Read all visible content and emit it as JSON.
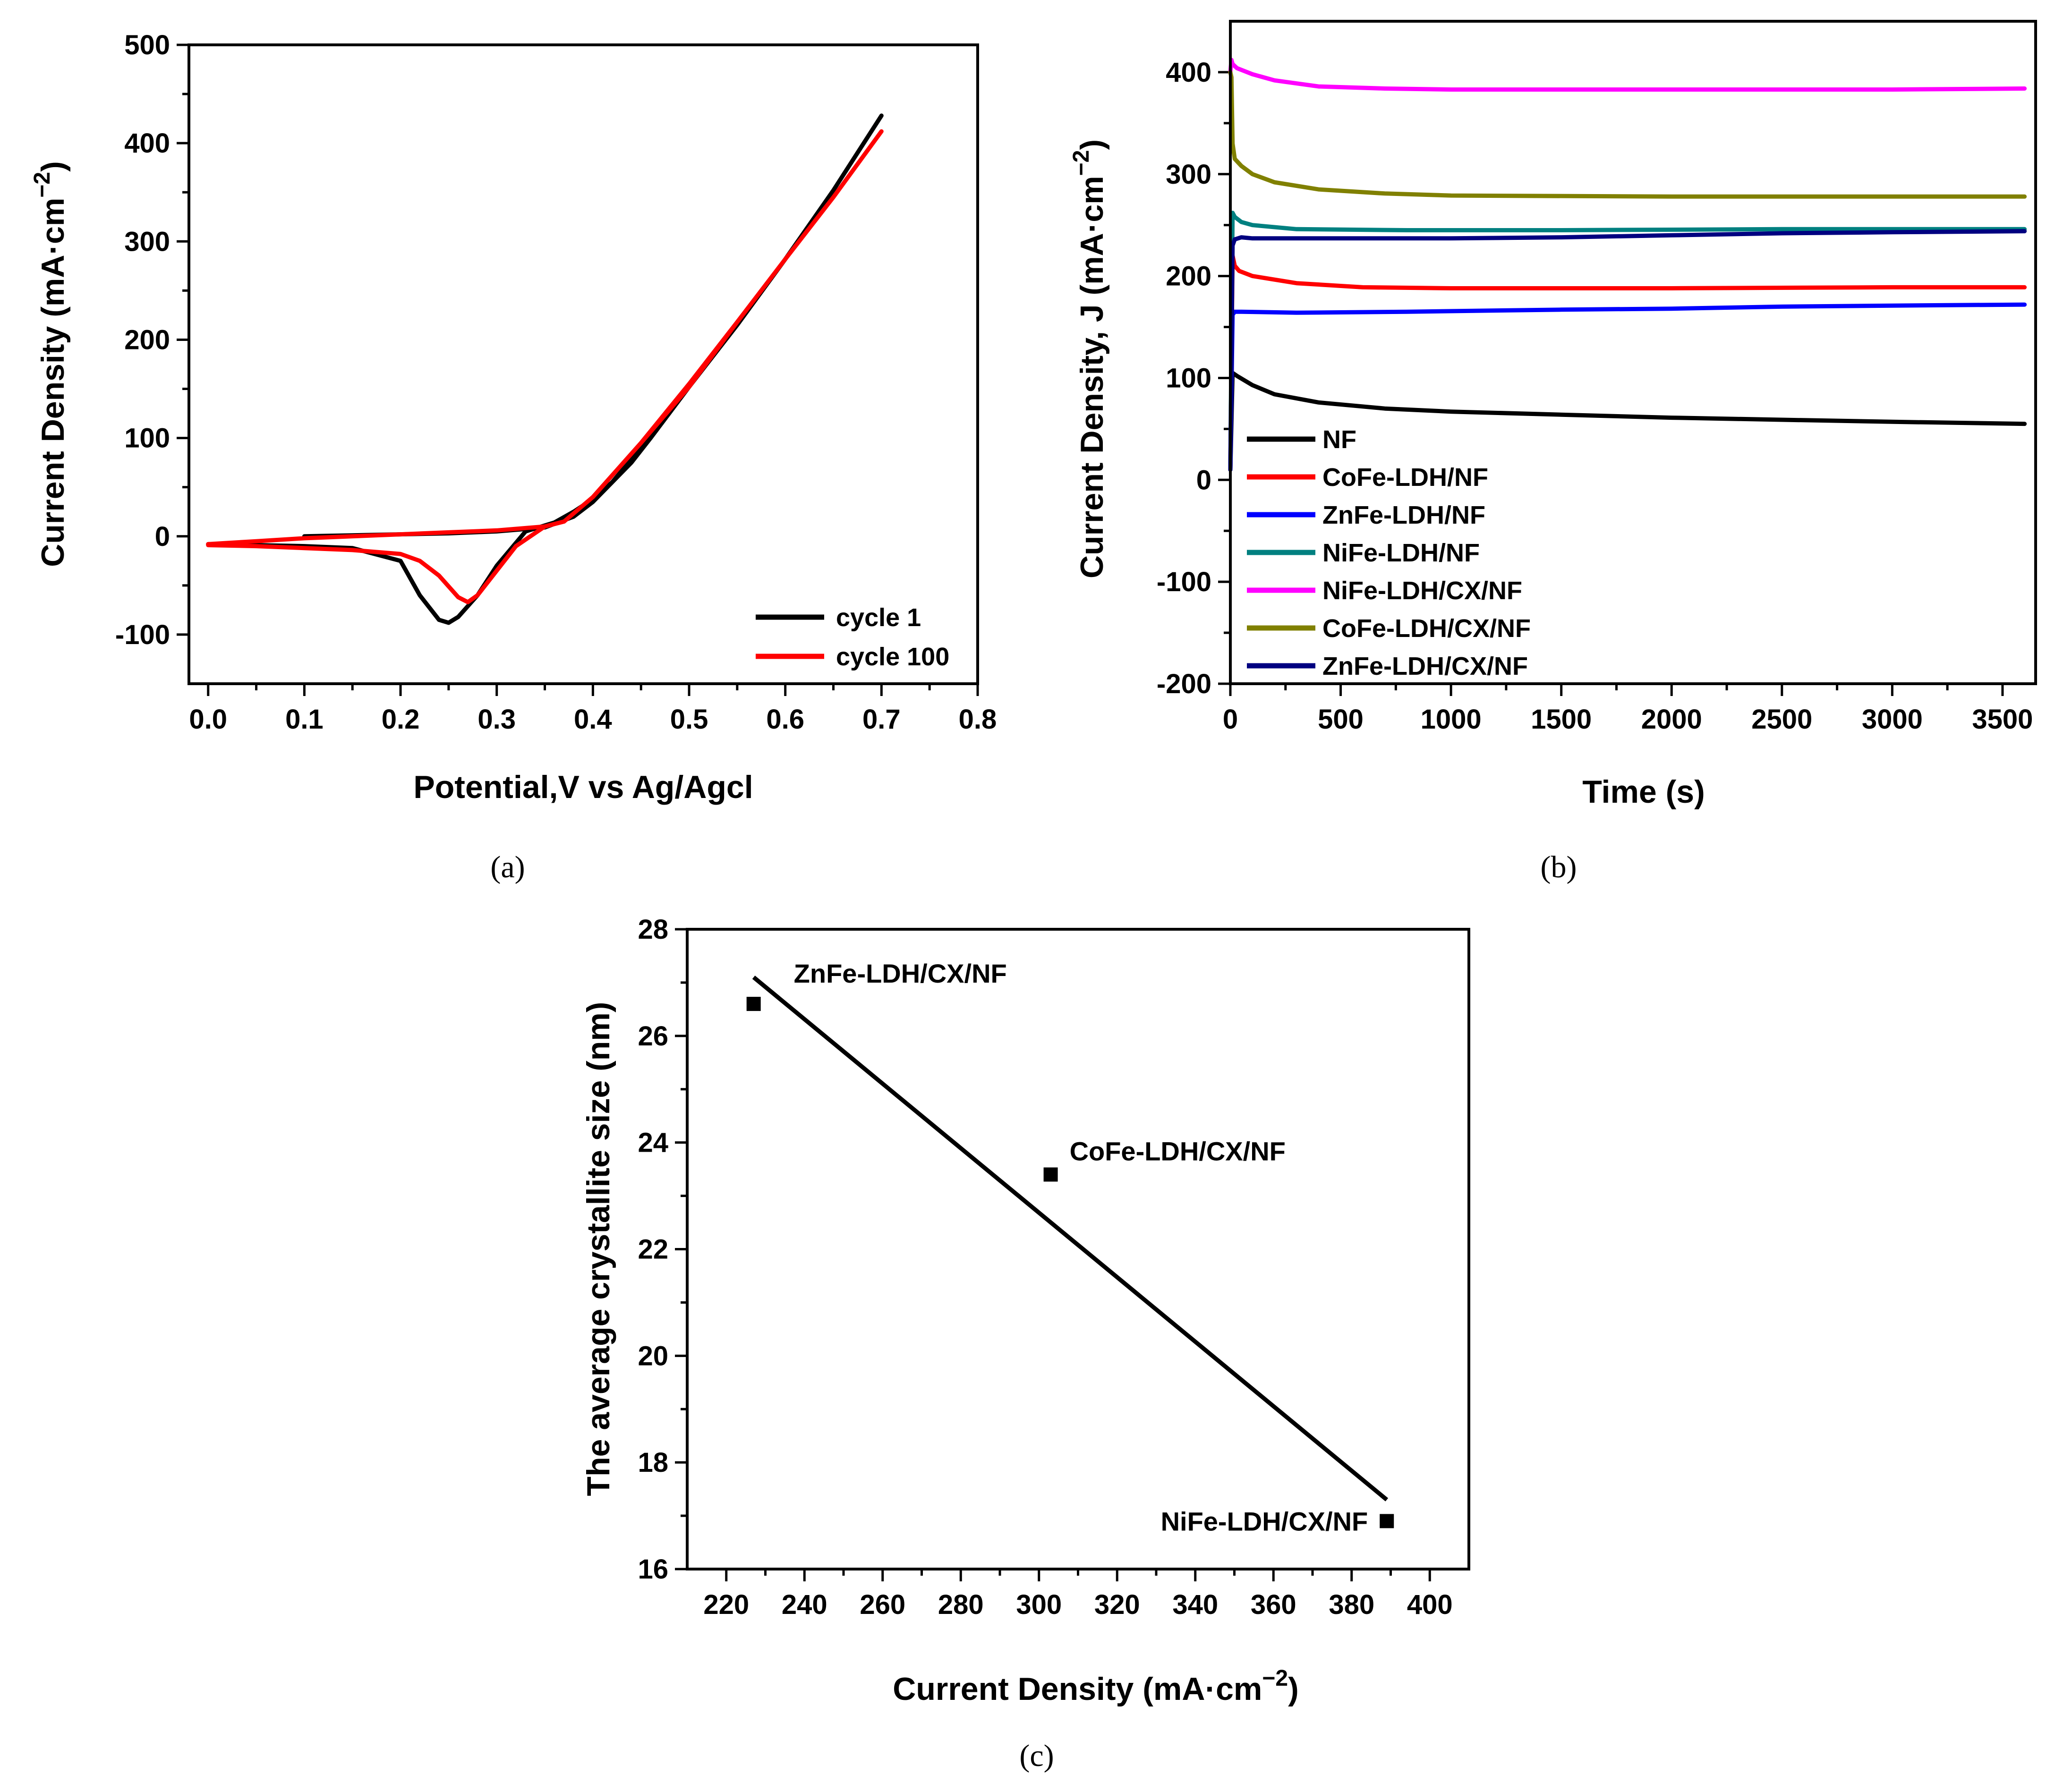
{
  "chart_data": [
    {
      "id": "a",
      "type": "line",
      "panel_label": "(a)",
      "xlabel": "Potential,V vs Ag/Agcl",
      "ylabel": "Current Density (mA·cm",
      "ylabel_sup": "−2",
      "ylabel_tail": ")",
      "xlim": [
        -0.02,
        0.8
      ],
      "ylim": [
        -150,
        500
      ],
      "xticks": [
        "0.0",
        "0.1",
        "0.2",
        "0.3",
        "0.4",
        "0.5",
        "0.6",
        "0.7",
        "0.8"
      ],
      "yticks": [
        "-100",
        "0",
        "100",
        "200",
        "300",
        "400",
        "500"
      ],
      "legend_position": "bottom-right",
      "series": [
        {
          "name": "cycle 1",
          "color": "#000000",
          "x": [
            0.1,
            0.15,
            0.2,
            0.25,
            0.3,
            0.35,
            0.38,
            0.4,
            0.42,
            0.44,
            0.46,
            0.5,
            0.55,
            0.6,
            0.65,
            0.7,
            0.65,
            0.6,
            0.55,
            0.5,
            0.45,
            0.42,
            0.4,
            0.38,
            0.36,
            0.33,
            0.3,
            0.28,
            0.26,
            0.25,
            0.24,
            0.22,
            0.2,
            0.15,
            0.1,
            0.05,
            0.0
          ],
          "y": [
            0,
            1,
            2,
            3,
            5,
            9,
            20,
            35,
            55,
            75,
            100,
            152,
            215,
            282,
            352,
            428,
            352,
            282,
            215,
            152,
            90,
            55,
            38,
            25,
            14,
            5,
            -30,
            -60,
            -82,
            -88,
            -85,
            -60,
            -25,
            -12,
            -10,
            -9,
            -8
          ]
        },
        {
          "name": "cycle 100",
          "color": "#ff0000",
          "x": [
            0.0,
            0.05,
            0.1,
            0.15,
            0.2,
            0.25,
            0.3,
            0.35,
            0.37,
            0.4,
            0.45,
            0.5,
            0.55,
            0.6,
            0.65,
            0.7,
            0.65,
            0.6,
            0.55,
            0.5,
            0.45,
            0.4,
            0.37,
            0.35,
            0.32,
            0.3,
            0.28,
            0.27,
            0.26,
            0.24,
            0.22,
            0.2,
            0.15,
            0.1,
            0.05,
            0.0
          ],
          "y": [
            -8,
            -5,
            -2,
            0,
            2,
            4,
            6,
            10,
            15,
            40,
            95,
            155,
            218,
            282,
            345,
            412,
            345,
            282,
            218,
            152,
            95,
            40,
            15,
            10,
            -10,
            -35,
            -60,
            -67,
            -62,
            -40,
            -25,
            -18,
            -14,
            -12,
            -10,
            -9
          ]
        }
      ]
    },
    {
      "id": "b",
      "type": "line",
      "panel_label": "(b)",
      "xlabel": "Time (s)",
      "ylabel": "Current Density, J (mA·cm",
      "ylabel_sup": "−2",
      "ylabel_tail": ")",
      "xlim": [
        0,
        3650
      ],
      "ylim": [
        -200,
        450
      ],
      "xticks": [
        "0",
        "500",
        "1000",
        "1500",
        "2000",
        "2500",
        "3000",
        "3500"
      ],
      "yticks": [
        "-200",
        "-100",
        "0",
        "100",
        "200",
        "300",
        "400"
      ],
      "legend_position": "bottom-left",
      "series": [
        {
          "name": "NF",
          "color": "#000000",
          "x": [
            0,
            10,
            30,
            100,
            200,
            400,
            700,
            1000,
            1500,
            2000,
            2500,
            3000,
            3600
          ],
          "y": [
            10,
            105,
            102,
            93,
            84,
            76,
            70,
            67,
            64,
            61,
            59,
            57,
            55
          ]
        },
        {
          "name": "CoFe-LDH/NF",
          "color": "#ff0000",
          "x": [
            0,
            10,
            20,
            40,
            100,
            300,
            600,
            1000,
            2000,
            3000,
            3600
          ],
          "y": [
            10,
            220,
            210,
            205,
            200,
            193,
            189,
            188,
            188,
            189,
            189
          ]
        },
        {
          "name": "ZnFe-LDH/NF",
          "color": "#0000ff",
          "x": [
            0,
            10,
            20,
            50,
            300,
            800,
            1500,
            2000,
            2500,
            3000,
            3600
          ],
          "y": [
            10,
            162,
            165,
            165,
            164,
            165,
            167,
            168,
            170,
            171,
            172
          ]
        },
        {
          "name": "NiFe-LDH/NF",
          "color": "#008080",
          "x": [
            0,
            10,
            20,
            50,
            100,
            300,
            800,
            1500,
            2500,
            3600
          ],
          "y": [
            10,
            262,
            258,
            253,
            250,
            246,
            245,
            245,
            246,
            246
          ]
        },
        {
          "name": "NiFe-LDH/CX/NF",
          "color": "#ff00ff",
          "x": [
            0,
            5,
            10,
            30,
            100,
            200,
            400,
            700,
            1000,
            2000,
            3000,
            3600
          ],
          "y": [
            400,
            412,
            408,
            404,
            398,
            392,
            386,
            384,
            383,
            383,
            383,
            384
          ]
        },
        {
          "name": "CoFe-LDH/CX/NF",
          "color": "#808000",
          "x": [
            0,
            5,
            10,
            20,
            50,
            100,
            200,
            400,
            700,
            1000,
            2000,
            3000,
            3600
          ],
          "y": [
            400,
            395,
            330,
            315,
            308,
            300,
            292,
            285,
            281,
            279,
            278,
            278,
            278
          ]
        },
        {
          "name": "ZnFe-LDH/CX/NF",
          "color": "#000080",
          "x": [
            0,
            10,
            20,
            50,
            100,
            500,
            1000,
            1500,
            2000,
            2500,
            3000,
            3600
          ],
          "y": [
            10,
            230,
            236,
            238,
            237,
            237,
            237,
            238,
            240,
            242,
            243,
            244
          ]
        }
      ]
    },
    {
      "id": "c",
      "type": "scatter",
      "panel_label": "(c)",
      "xlabel": "Current Density (mA·cm",
      "xlabel_sup": "−2",
      "xlabel_tail": ")",
      "ylabel": "The average crystallite size (nm)",
      "xlim": [
        210,
        410
      ],
      "ylim": [
        16,
        28
      ],
      "xticks": [
        "220",
        "240",
        "260",
        "280",
        "300",
        "320",
        "340",
        "360",
        "380",
        "400"
      ],
      "yticks": [
        "16",
        "18",
        "20",
        "22",
        "24",
        "26",
        "28"
      ],
      "points": [
        {
          "label": "ZnFe-LDH/CX/NF",
          "x": 227,
          "y": 26.6
        },
        {
          "label": "CoFe-LDH/CX/NF",
          "x": 303,
          "y": 23.4
        },
        {
          "label": "NiFe-LDH/CX/NF",
          "x": 389,
          "y": 16.9
        }
      ],
      "fit_line": {
        "x": [
          227,
          389
        ],
        "y": [
          27.1,
          17.3
        ]
      }
    }
  ]
}
